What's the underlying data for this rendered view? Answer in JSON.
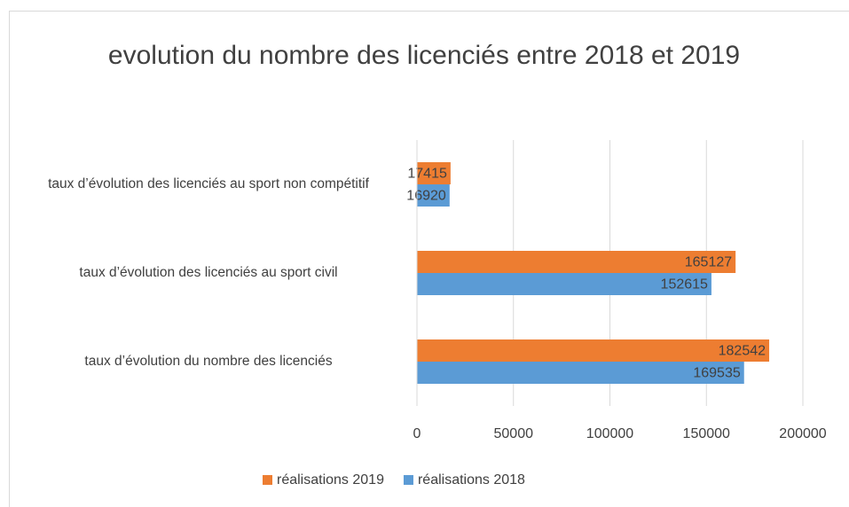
{
  "chart_data": {
    "type": "bar",
    "orientation": "horizontal",
    "title": "evolution du nombre des licenciés entre 2018 et 2019",
    "categories": [
      "taux d’évolution du nombre des licenciés",
      "taux d’évolution des licenciés au sport civil",
      "taux d’évolution des licenciés au sport non compétitif"
    ],
    "series": [
      {
        "name": "réalisations 2019",
        "color": "#ed7d31",
        "values": [
          182542,
          165127,
          17415
        ]
      },
      {
        "name": "réalisations 2018",
        "color": "#5b9bd5",
        "values": [
          169535,
          152615,
          16920
        ]
      }
    ],
    "xlim": [
      0,
      200000
    ],
    "xticks": [
      0,
      50000,
      100000,
      150000,
      200000
    ],
    "grid": true,
    "legend": "bottom"
  }
}
